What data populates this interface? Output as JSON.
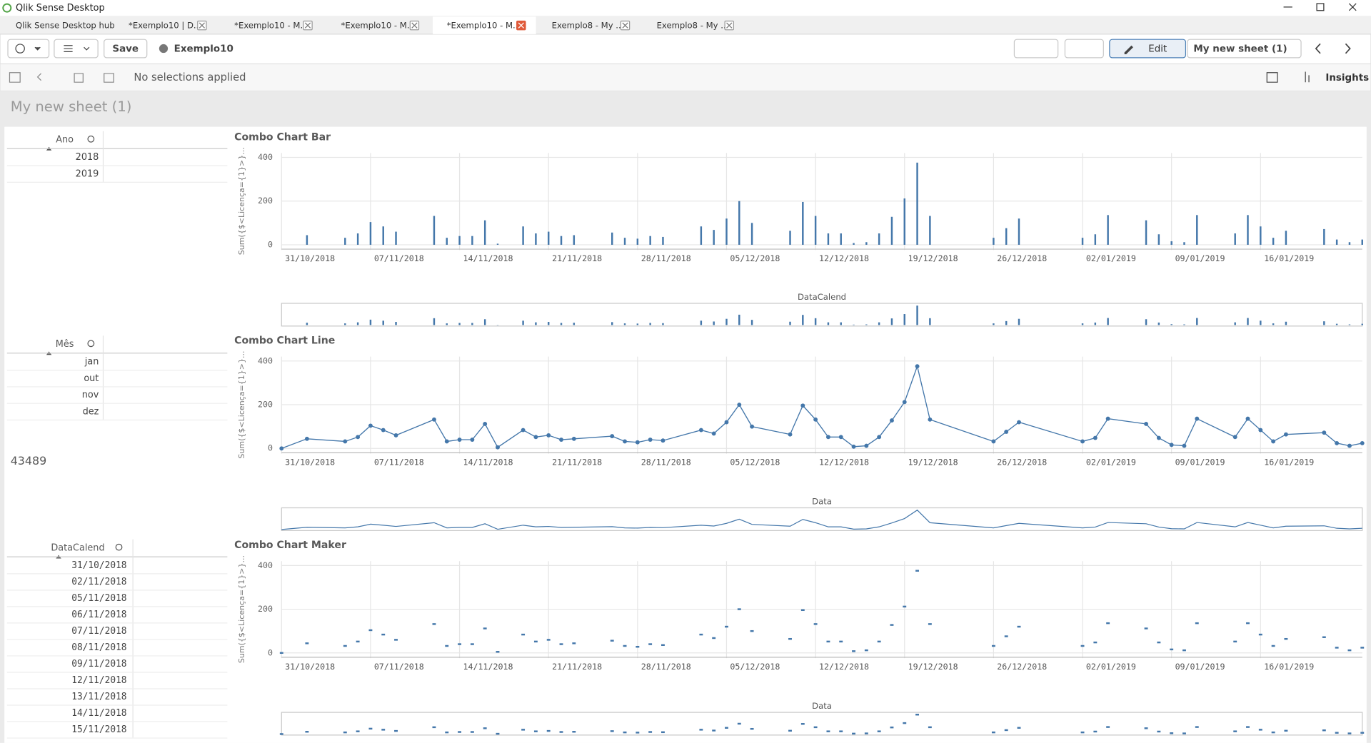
{
  "window": {
    "title": "Qlik Sense Desktop"
  },
  "tabs": [
    "Qlik Sense Desktop hub",
    "*Exemplo10 | D...",
    "*Exemplo10 - M...",
    "*Exemplo10 - M...",
    "*Exemplo10 - M...",
    "Exemplo8 - My ...",
    "Exemplo8 - My ..."
  ],
  "toolbar": {
    "save": "Save",
    "app": "Exemplo10",
    "edit": "Edit",
    "sheet": "My new sheet (1)",
    "selections": "No selections applied",
    "insights": "Insights"
  },
  "sheet_title": "My new sheet (1)",
  "filters": [
    {
      "title": "Ano",
      "items": [
        "2018",
        "2019"
      ]
    },
    {
      "title": "Mês",
      "items": [
        "jan",
        "out",
        "nov",
        "dez"
      ]
    },
    {
      "title": "DataCalend",
      "items": [
        "31/10/2018",
        "02/11/2018",
        "05/11/2018",
        "06/11/2018",
        "07/11/2018",
        "08/11/2018",
        "09/11/2018",
        "12/11/2018",
        "13/11/2018",
        "14/11/2018",
        "15/11/2018"
      ]
    }
  ],
  "kpi": 43489,
  "chart_data": [
    {
      "type": "bar",
      "title": "Combo Chart Bar",
      "y_label": "Sum({$<Licença={1}>}...",
      "nav_label": "DataCalend",
      "color": "#4477aa",
      "x": [
        "31/10/2018",
        "02/11/2018",
        "05/11/2018",
        "06/11/2018",
        "07/11/2018",
        "08/11/2018",
        "09/11/2018",
        "12/11/2018",
        "13/11/2018",
        "14/11/2018",
        "15/11/2018",
        "16/11/2018",
        "17/11/2018",
        "19/11/2018",
        "20/11/2018",
        "21/11/2018",
        "22/11/2018",
        "23/11/2018",
        "26/11/2018",
        "27/11/2018",
        "28/11/2018",
        "29/11/2018",
        "30/11/2018",
        "03/12/2018",
        "04/12/2018",
        "05/12/2018",
        "06/12/2018",
        "07/12/2018",
        "10/12/2018",
        "11/12/2018",
        "12/12/2018",
        "13/12/2018",
        "14/12/2018",
        "15/12/2018",
        "16/12/2018",
        "17/12/2018",
        "18/12/2018",
        "19/12/2018",
        "20/12/2018",
        "21/12/2018",
        "26/12/2018",
        "27/12/2018",
        "28/12/2018",
        "02/01/2019",
        "03/01/2019",
        "04/01/2019",
        "07/01/2019",
        "08/01/2019",
        "09/01/2019",
        "10/01/2019",
        "11/01/2019",
        "14/01/2019",
        "15/01/2019",
        "16/01/2019",
        "17/01/2019",
        "18/01/2019",
        "21/01/2019",
        "22/01/2019",
        "23/01/2019",
        "24/01/2019"
      ],
      "values": [
        0,
        44,
        32,
        52,
        104,
        84,
        60,
        132,
        32,
        40,
        40,
        112,
        5,
        84,
        52,
        60,
        40,
        44,
        56,
        32,
        28,
        40,
        36,
        84,
        68,
        120,
        200,
        100,
        64,
        196,
        132,
        52,
        52,
        8,
        12,
        52,
        128,
        212,
        376,
        132,
        32,
        76,
        120,
        32,
        48,
        136,
        112,
        48,
        16,
        12,
        136,
        52,
        136,
        84,
        32,
        64,
        72,
        24,
        12,
        24
      ],
      "xlim": [
        "31/10/2018",
        "24/01/2019"
      ],
      "xticks": [
        "31/10/2018",
        "07/11/2018",
        "14/11/2018",
        "21/11/2018",
        "28/11/2018",
        "05/12/2018",
        "12/12/2018",
        "19/12/2018",
        "26/12/2018",
        "02/01/2019",
        "09/01/2019",
        "16/01/2019"
      ],
      "ylim": [
        -20,
        420
      ],
      "yticks": [
        0,
        200,
        400
      ],
      "grid": true
    },
    {
      "type": "line",
      "title": "Combo Chart Line",
      "y_label": "Sum({$<Licença={1}>}...",
      "nav_label": "Data",
      "color": "#4477aa",
      "x": [
        "31/10/2018",
        "02/11/2018",
        "05/11/2018",
        "06/11/2018",
        "07/11/2018",
        "08/11/2018",
        "09/11/2018",
        "12/11/2018",
        "13/11/2018",
        "14/11/2018",
        "15/11/2018",
        "16/11/2018",
        "17/11/2018",
        "19/11/2018",
        "20/11/2018",
        "21/11/2018",
        "22/11/2018",
        "23/11/2018",
        "26/11/2018",
        "27/11/2018",
        "28/11/2018",
        "29/11/2018",
        "30/11/2018",
        "03/12/2018",
        "04/12/2018",
        "05/12/2018",
        "06/12/2018",
        "07/12/2018",
        "10/12/2018",
        "11/12/2018",
        "12/12/2018",
        "13/12/2018",
        "14/12/2018",
        "15/12/2018",
        "16/12/2018",
        "17/12/2018",
        "18/12/2018",
        "19/12/2018",
        "20/12/2018",
        "21/12/2018",
        "26/12/2018",
        "27/12/2018",
        "28/12/2018",
        "02/01/2019",
        "03/01/2019",
        "04/01/2019",
        "07/01/2019",
        "08/01/2019",
        "09/01/2019",
        "10/01/2019",
        "11/01/2019",
        "14/01/2019",
        "15/01/2019",
        "16/01/2019",
        "17/01/2019",
        "18/01/2019",
        "21/01/2019",
        "22/01/2019",
        "23/01/2019",
        "24/01/2019"
      ],
      "values": [
        0,
        44,
        32,
        52,
        104,
        84,
        60,
        132,
        32,
        40,
        40,
        112,
        5,
        84,
        52,
        60,
        40,
        44,
        56,
        32,
        28,
        40,
        36,
        84,
        68,
        120,
        200,
        100,
        64,
        196,
        132,
        52,
        52,
        8,
        12,
        52,
        128,
        212,
        376,
        132,
        32,
        76,
        120,
        32,
        48,
        136,
        112,
        48,
        16,
        12,
        136,
        52,
        136,
        84,
        32,
        64,
        72,
        24,
        12,
        24
      ],
      "xlim": [
        "31/10/2018",
        "24/01/2019"
      ],
      "xticks": [
        "31/10/2018",
        "07/11/2018",
        "14/11/2018",
        "21/11/2018",
        "28/11/2018",
        "05/12/2018",
        "12/12/2018",
        "19/12/2018",
        "26/12/2018",
        "02/01/2019",
        "09/01/2019",
        "16/01/2019"
      ],
      "ylim": [
        -20,
        420
      ],
      "yticks": [
        0,
        200,
        400
      ],
      "grid": true
    },
    {
      "type": "scatter",
      "title": "Combo Chart Maker",
      "y_label": "Sum({$<Licença={1}>}...",
      "nav_label": "Data",
      "color": "#4477aa",
      "x": [
        "31/10/2018",
        "02/11/2018",
        "05/11/2018",
        "06/11/2018",
        "07/11/2018",
        "08/11/2018",
        "09/11/2018",
        "12/11/2018",
        "13/11/2018",
        "14/11/2018",
        "15/11/2018",
        "16/11/2018",
        "17/11/2018",
        "19/11/2018",
        "20/11/2018",
        "21/11/2018",
        "22/11/2018",
        "23/11/2018",
        "26/11/2018",
        "27/11/2018",
        "28/11/2018",
        "29/11/2018",
        "30/11/2018",
        "03/12/2018",
        "04/12/2018",
        "05/12/2018",
        "06/12/2018",
        "07/12/2018",
        "10/12/2018",
        "11/12/2018",
        "12/12/2018",
        "13/12/2018",
        "14/12/2018",
        "15/12/2018",
        "16/12/2018",
        "17/12/2018",
        "18/12/2018",
        "19/12/2018",
        "20/12/2018",
        "21/12/2018",
        "26/12/2018",
        "27/12/2018",
        "28/12/2018",
        "02/01/2019",
        "03/01/2019",
        "04/01/2019",
        "07/01/2019",
        "08/01/2019",
        "09/01/2019",
        "10/01/2019",
        "11/01/2019",
        "14/01/2019",
        "15/01/2019",
        "16/01/2019",
        "17/01/2019",
        "18/01/2019",
        "21/01/2019",
        "22/01/2019",
        "23/01/2019",
        "24/01/2019"
      ],
      "values": [
        0,
        44,
        32,
        52,
        104,
        84,
        60,
        132,
        32,
        40,
        40,
        112,
        5,
        84,
        52,
        60,
        40,
        44,
        56,
        32,
        28,
        40,
        36,
        84,
        68,
        120,
        200,
        100,
        64,
        196,
        132,
        52,
        52,
        8,
        12,
        52,
        128,
        212,
        376,
        132,
        32,
        76,
        120,
        32,
        48,
        136,
        112,
        48,
        16,
        12,
        136,
        52,
        136,
        84,
        32,
        64,
        72,
        24,
        12,
        24
      ],
      "xlim": [
        "31/10/2018",
        "24/01/2019"
      ],
      "xticks": [
        "31/10/2018",
        "07/11/2018",
        "14/11/2018",
        "21/11/2018",
        "28/11/2018",
        "05/12/2018",
        "12/12/2018",
        "19/12/2018",
        "26/12/2018",
        "02/01/2019",
        "09/01/2019",
        "16/01/2019"
      ],
      "ylim": [
        -20,
        420
      ],
      "yticks": [
        0,
        200,
        400
      ],
      "grid": true
    }
  ]
}
